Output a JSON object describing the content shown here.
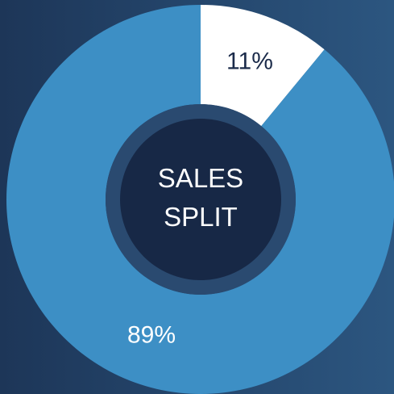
{
  "chart_data": {
    "type": "donut",
    "title": "SALES SPLIT",
    "values": [
      11,
      89
    ],
    "value_labels": [
      "11%",
      "89%"
    ],
    "colors": [
      "#ffffff",
      "#3d8fc5"
    ],
    "label_colors": [
      "#1b2b4a",
      "#ffffff"
    ]
  }
}
